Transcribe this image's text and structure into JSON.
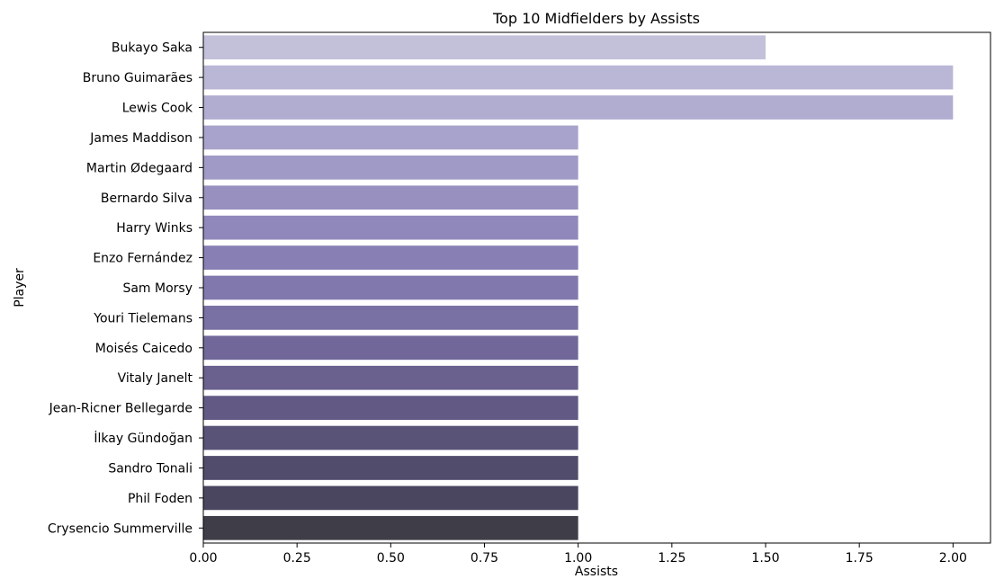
{
  "chart_data": {
    "type": "bar",
    "orientation": "horizontal",
    "title": "Top 10 Midfielders by Assists",
    "xlabel": "Assists",
    "ylabel": "Player",
    "xlim": [
      0,
      2.1
    ],
    "x_ticks": [
      0,
      0.25,
      0.5,
      0.75,
      1.0,
      1.25,
      1.5,
      1.75,
      2.0
    ],
    "x_tick_labels": [
      "0.00",
      "0.25",
      "0.50",
      "0.75",
      "1.00",
      "1.25",
      "1.50",
      "1.75",
      "2.00"
    ],
    "grid": false,
    "categories": [
      "Bukayo Saka",
      "Bruno Guimarães",
      "Lewis Cook",
      "James Maddison",
      "Martin Ødegaard",
      "Bernardo Silva",
      "Harry Winks",
      "Enzo Fernández",
      "Sam Morsy",
      "Youri Tielemans",
      "Moisés Caicedo",
      "Vitaly Janelt",
      "Jean-Ricner Bellegarde",
      "İlkay Gündoğan",
      "Sandro Tonali",
      "Phil Foden",
      "Crysencio Summerville"
    ],
    "values": [
      1.5,
      2,
      2,
      1,
      1,
      1,
      1,
      1,
      1,
      1,
      1,
      1,
      1,
      1,
      1,
      1,
      1
    ],
    "colors": [
      "#c3c1da",
      "#bab7d6",
      "#b1add1",
      "#a8a3cc",
      "#a09ac6",
      "#9891c0",
      "#9088bb",
      "#887fb5",
      "#8178ae",
      "#7970a4",
      "#716899",
      "#6a618f",
      "#625a84",
      "#5a5378",
      "#524c6c",
      "#4a4660",
      "#3f3e48"
    ]
  }
}
